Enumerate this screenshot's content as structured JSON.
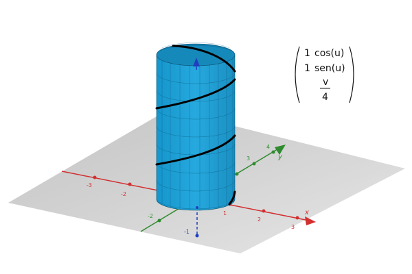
{
  "surface": {
    "type": "parametric-cylinder",
    "radius": 1,
    "color": "#1b9fd6",
    "edge_color": "#0b4f6c"
  },
  "helix": {
    "color": "#000000",
    "turns": 3
  },
  "parametric_matrix": {
    "rows": [
      {
        "coef": "1",
        "func": "cos(u)"
      },
      {
        "coef": "1",
        "func": "sen(u)"
      }
    ],
    "third_row": {
      "numerator": "v",
      "denominator": "4"
    }
  },
  "axes": {
    "x": {
      "name": "x",
      "color": "#d32f2f",
      "tick_labels": [
        {
          "value": -3,
          "label": "-3"
        },
        {
          "value": -2,
          "label": "-2"
        },
        {
          "value": 1,
          "label": "1"
        },
        {
          "value": 2,
          "label": "2"
        },
        {
          "value": 3,
          "label": "3"
        }
      ]
    },
    "y": {
      "name": "y",
      "color": "#2e8b2e",
      "tick_labels": [
        {
          "value": -2,
          "label": "-2"
        },
        {
          "value": 1,
          "label": "1"
        },
        {
          "value": 3,
          "label": "3"
        },
        {
          "value": 4,
          "label": "4"
        }
      ]
    },
    "z": {
      "color": "#1f3fbf",
      "tick_labels": [
        {
          "value": -1,
          "label": "-1"
        }
      ]
    }
  },
  "base_plane": {
    "color": "#c8c8c8"
  }
}
